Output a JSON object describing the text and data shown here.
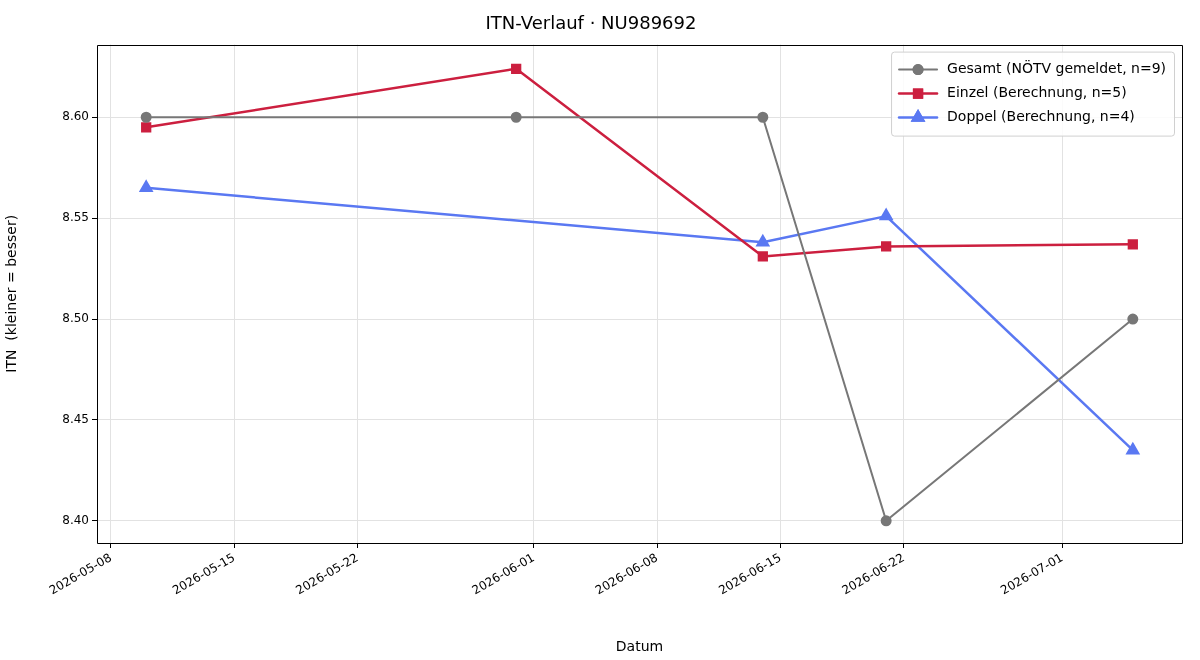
{
  "chart_data": {
    "type": "line",
    "title": "ITN-Verlauf · NU989692",
    "xlabel": "Datum",
    "ylabel": "ITN  (kleiner = besser)",
    "xlim": [
      "2026-05-07T05:00",
      "2026-07-07T19:00"
    ],
    "xticks": [
      "2026-05-08",
      "2026-05-15",
      "2026-05-22",
      "2026-06-01",
      "2026-06-08",
      "2026-06-15",
      "2026-06-22",
      "2026-07-01"
    ],
    "ylim": [
      8.389,
      8.636
    ],
    "yticks": [
      {
        "value": 8.4,
        "label": "8.40"
      },
      {
        "value": 8.45,
        "label": "8.45"
      },
      {
        "value": 8.5,
        "label": "8.50"
      },
      {
        "value": 8.55,
        "label": "8.55"
      },
      {
        "value": 8.6,
        "label": "8.60"
      }
    ],
    "grid": true,
    "legend": "top right",
    "line_style": "solid",
    "series": [
      {
        "name": "Gesamt (NÖTV gemeldet, n=9)",
        "color": "#777777",
        "marker": "circle",
        "x": [
          "2026-05-10",
          "2026-05-31",
          "2026-06-14",
          "2026-06-21",
          "2026-07-05"
        ],
        "values": [
          8.6,
          8.6,
          8.6,
          8.4,
          8.5
        ]
      },
      {
        "name": "Einzel (Berechnung, n=5)",
        "color": "#cc1f3f",
        "marker": "square",
        "x": [
          "2026-05-10",
          "2026-05-31",
          "2026-06-14",
          "2026-06-21",
          "2026-07-05"
        ],
        "values": [
          8.595,
          8.624,
          8.531,
          8.536,
          8.537
        ]
      },
      {
        "name": "Doppel (Berechnung, n=4)",
        "color": "#5a78f2",
        "marker": "triangle",
        "x": [
          "2026-05-10",
          "2026-06-14",
          "2026-06-21",
          "2026-07-05"
        ],
        "values": [
          8.565,
          8.538,
          8.551,
          8.435
        ]
      }
    ]
  }
}
